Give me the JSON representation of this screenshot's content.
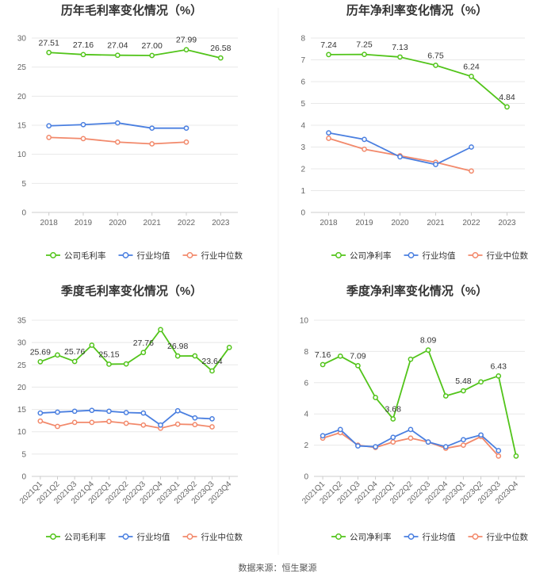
{
  "source_text": "数据来源：恒生聚源",
  "colors": {
    "company": "#52c41a",
    "avg": "#4a7fe0",
    "median": "#f2896b"
  },
  "chart_data": [
    {
      "id": "annual-gross",
      "type": "line",
      "title": "历年毛利率变化情况（%）",
      "categories": [
        "2018",
        "2019",
        "2020",
        "2021",
        "2022",
        "2023"
      ],
      "ylim": [
        0,
        30
      ],
      "yticks": [
        0,
        5,
        10,
        15,
        20,
        25,
        30
      ],
      "xlabel": "",
      "ylabel": "",
      "series": [
        {
          "name": "公司毛利率",
          "key": "company",
          "values": [
            27.51,
            27.16,
            27.04,
            27.0,
            27.99,
            26.58
          ],
          "labels": [
            "27.51",
            "27.16",
            "27.04",
            "27.00",
            "27.99",
            "26.58"
          ]
        },
        {
          "name": "行业均值",
          "key": "avg",
          "values": [
            14.9,
            15.1,
            15.4,
            14.5,
            14.5,
            null
          ]
        },
        {
          "name": "行业中位数",
          "key": "median",
          "values": [
            12.9,
            12.7,
            12.1,
            11.8,
            12.1,
            null
          ]
        }
      ]
    },
    {
      "id": "annual-net",
      "type": "line",
      "title": "历年净利率变化情况（%）",
      "categories": [
        "2018",
        "2019",
        "2020",
        "2021",
        "2022",
        "2023"
      ],
      "ylim": [
        0,
        8
      ],
      "yticks": [
        0,
        1,
        2,
        3,
        4,
        5,
        6,
        7,
        8
      ],
      "xlabel": "",
      "ylabel": "",
      "series": [
        {
          "name": "公司净利率",
          "key": "company",
          "values": [
            7.24,
            7.25,
            7.13,
            6.75,
            6.24,
            4.84
          ],
          "labels": [
            "7.24",
            "7.25",
            "7.13",
            "6.75",
            "6.24",
            "4.84"
          ]
        },
        {
          "name": "行业均值",
          "key": "avg",
          "values": [
            3.65,
            3.35,
            2.55,
            2.2,
            3.0,
            null
          ]
        },
        {
          "name": "行业中位数",
          "key": "median",
          "values": [
            3.4,
            2.9,
            2.6,
            2.3,
            1.9,
            null
          ]
        }
      ]
    },
    {
      "id": "quarterly-gross",
      "type": "line",
      "title": "季度毛利率变化情况（%）",
      "categories": [
        "2021Q1",
        "2021Q2",
        "2021Q3",
        "2021Q4",
        "2022Q1",
        "2022Q2",
        "2022Q3",
        "2022Q4",
        "2023Q1",
        "2023Q2",
        "2023Q3",
        "2023Q4"
      ],
      "ylim": [
        0,
        35
      ],
      "yticks": [
        0,
        5,
        10,
        15,
        20,
        25,
        30,
        35
      ],
      "xlabel": "",
      "ylabel": "",
      "series": [
        {
          "name": "公司毛利率",
          "key": "company",
          "values": [
            25.69,
            27.2,
            25.76,
            29.4,
            25.15,
            25.2,
            27.76,
            32.9,
            26.98,
            27.0,
            23.64,
            28.9
          ],
          "labels": [
            "25.69",
            null,
            "25.76",
            null,
            "25.15",
            null,
            "27.76",
            null,
            "26.98",
            null,
            "23.64",
            null
          ]
        },
        {
          "name": "行业均值",
          "key": "avg",
          "values": [
            14.2,
            14.4,
            14.6,
            14.8,
            14.6,
            14.3,
            14.2,
            11.5,
            14.7,
            13.1,
            12.9,
            null
          ]
        },
        {
          "name": "行业中位数",
          "key": "median",
          "values": [
            12.4,
            11.2,
            12.1,
            12.1,
            12.3,
            11.9,
            11.5,
            10.8,
            11.7,
            11.6,
            11.1,
            null
          ]
        }
      ]
    },
    {
      "id": "quarterly-net",
      "type": "line",
      "title": "季度净利率变化情况（%）",
      "categories": [
        "2021Q1",
        "2021Q2",
        "2021Q3",
        "2021Q4",
        "2022Q1",
        "2022Q2",
        "2022Q3",
        "2022Q4",
        "2023Q1",
        "2023Q2",
        "2023Q3",
        "2023Q4"
      ],
      "ylim": [
        0,
        10
      ],
      "yticks": [
        0,
        2,
        4,
        6,
        8,
        10
      ],
      "xlabel": "",
      "ylabel": "",
      "series": [
        {
          "name": "公司净利率",
          "key": "company",
          "values": [
            7.16,
            7.7,
            7.09,
            5.05,
            3.68,
            7.5,
            8.09,
            5.15,
            5.48,
            6.05,
            6.43,
            1.3
          ],
          "labels": [
            "7.16",
            null,
            "7.09",
            null,
            "3.68",
            null,
            "8.09",
            null,
            "5.48",
            null,
            "6.43",
            null
          ]
        },
        {
          "name": "行业均值",
          "key": "avg",
          "values": [
            2.6,
            3.0,
            1.95,
            1.9,
            2.5,
            3.0,
            2.2,
            1.9,
            2.35,
            2.65,
            1.65,
            null
          ]
        },
        {
          "name": "行业中位数",
          "key": "median",
          "values": [
            2.45,
            2.8,
            2.0,
            1.85,
            2.2,
            2.45,
            2.2,
            1.8,
            2.0,
            2.55,
            1.3,
            null
          ]
        }
      ]
    }
  ]
}
